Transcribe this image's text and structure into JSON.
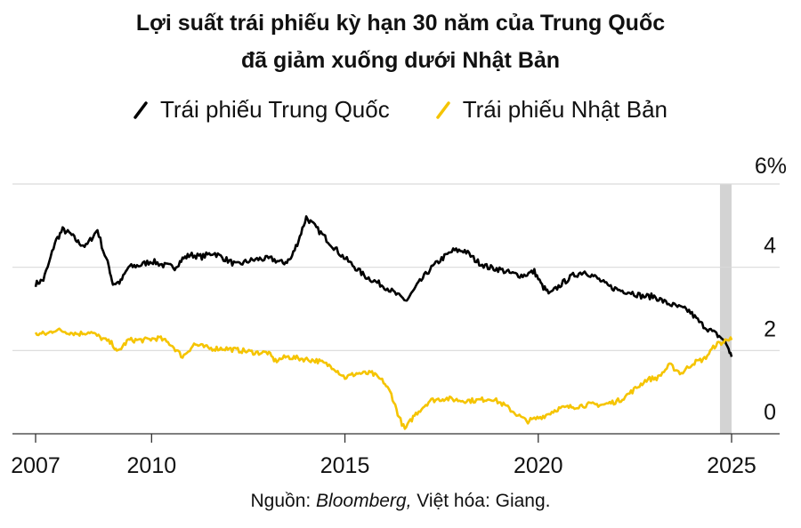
{
  "chart_data": {
    "type": "line",
    "title": "Lợi suất trái phiếu kỳ hạn 30 năm của Trung Quốc",
    "subtitle": "đã giảm xuống dưới Nhật Bản",
    "ylim": [
      0,
      6
    ],
    "xlim": [
      2007,
      2025.2
    ],
    "x_ticks": [
      2007,
      2010,
      2015,
      2020,
      2025
    ],
    "y_ticks": [
      0,
      2,
      4,
      6
    ],
    "y_tick_labels": [
      "0",
      "2",
      "4",
      "6%"
    ],
    "legend_position": "top",
    "grid": "horizontal",
    "highlight_band": [
      2024.7,
      2025.0
    ],
    "highlight_color": "#d3d3d3",
    "series": [
      {
        "name": "Trái phiếu Trung Quốc",
        "color": "#000000",
        "points": [
          [
            2007.0,
            3.6
          ],
          [
            2007.2,
            3.7
          ],
          [
            2007.35,
            4.1
          ],
          [
            2007.5,
            4.6
          ],
          [
            2007.7,
            4.9
          ],
          [
            2007.9,
            4.8
          ],
          [
            2008.1,
            4.6
          ],
          [
            2008.3,
            4.5
          ],
          [
            2008.6,
            4.9
          ],
          [
            2008.75,
            4.4
          ],
          [
            2008.9,
            4.0
          ],
          [
            2009.0,
            3.6
          ],
          [
            2009.2,
            3.65
          ],
          [
            2009.4,
            4.0
          ],
          [
            2009.7,
            4.05
          ],
          [
            2010.0,
            4.15
          ],
          [
            2010.3,
            4.05
          ],
          [
            2010.6,
            4.0
          ],
          [
            2010.8,
            4.2
          ],
          [
            2011.0,
            4.3
          ],
          [
            2011.3,
            4.25
          ],
          [
            2011.6,
            4.35
          ],
          [
            2011.9,
            4.2
          ],
          [
            2012.2,
            4.05
          ],
          [
            2012.5,
            4.15
          ],
          [
            2012.8,
            4.2
          ],
          [
            2013.1,
            4.2
          ],
          [
            2013.4,
            4.1
          ],
          [
            2013.6,
            4.2
          ],
          [
            2013.8,
            4.65
          ],
          [
            2014.0,
            5.2
          ],
          [
            2014.3,
            4.9
          ],
          [
            2014.6,
            4.6
          ],
          [
            2014.9,
            4.3
          ],
          [
            2015.2,
            4.05
          ],
          [
            2015.5,
            3.8
          ],
          [
            2015.8,
            3.65
          ],
          [
            2016.1,
            3.5
          ],
          [
            2016.4,
            3.3
          ],
          [
            2016.6,
            3.2
          ],
          [
            2016.9,
            3.6
          ],
          [
            2017.2,
            3.95
          ],
          [
            2017.5,
            4.2
          ],
          [
            2017.8,
            4.4
          ],
          [
            2018.1,
            4.4
          ],
          [
            2018.4,
            4.15
          ],
          [
            2018.7,
            4.0
          ],
          [
            2019.0,
            3.95
          ],
          [
            2019.3,
            3.85
          ],
          [
            2019.6,
            3.8
          ],
          [
            2019.9,
            3.9
          ],
          [
            2020.1,
            3.55
          ],
          [
            2020.3,
            3.35
          ],
          [
            2020.6,
            3.6
          ],
          [
            2020.9,
            3.8
          ],
          [
            2021.2,
            3.9
          ],
          [
            2021.5,
            3.75
          ],
          [
            2021.8,
            3.55
          ],
          [
            2022.1,
            3.45
          ],
          [
            2022.4,
            3.4
          ],
          [
            2022.7,
            3.3
          ],
          [
            2023.0,
            3.3
          ],
          [
            2023.3,
            3.15
          ],
          [
            2023.6,
            3.05
          ],
          [
            2023.9,
            2.95
          ],
          [
            2024.2,
            2.65
          ],
          [
            2024.5,
            2.45
          ],
          [
            2024.75,
            2.3
          ],
          [
            2024.9,
            2.1
          ],
          [
            2025.0,
            1.85
          ]
        ]
      },
      {
        "name": "Trái phiếu Nhật Bản",
        "color": "#f5c400",
        "points": [
          [
            2007.0,
            2.4
          ],
          [
            2007.3,
            2.4
          ],
          [
            2007.5,
            2.5
          ],
          [
            2007.8,
            2.45
          ],
          [
            2008.1,
            2.4
          ],
          [
            2008.4,
            2.45
          ],
          [
            2008.7,
            2.3
          ],
          [
            2009.0,
            2.15
          ],
          [
            2009.1,
            1.95
          ],
          [
            2009.4,
            2.25
          ],
          [
            2009.8,
            2.25
          ],
          [
            2010.2,
            2.3
          ],
          [
            2010.5,
            2.15
          ],
          [
            2010.8,
            1.85
          ],
          [
            2011.1,
            2.15
          ],
          [
            2011.5,
            2.05
          ],
          [
            2011.9,
            2.05
          ],
          [
            2012.3,
            2.0
          ],
          [
            2012.7,
            1.95
          ],
          [
            2013.0,
            1.95
          ],
          [
            2013.2,
            1.75
          ],
          [
            2013.5,
            1.85
          ],
          [
            2013.9,
            1.8
          ],
          [
            2014.3,
            1.75
          ],
          [
            2014.7,
            1.6
          ],
          [
            2015.0,
            1.35
          ],
          [
            2015.3,
            1.45
          ],
          [
            2015.7,
            1.45
          ],
          [
            2016.0,
            1.25
          ],
          [
            2016.2,
            0.95
          ],
          [
            2016.4,
            0.4
          ],
          [
            2016.55,
            0.1
          ],
          [
            2016.8,
            0.45
          ],
          [
            2017.2,
            0.8
          ],
          [
            2017.6,
            0.85
          ],
          [
            2018.0,
            0.8
          ],
          [
            2018.4,
            0.8
          ],
          [
            2018.8,
            0.85
          ],
          [
            2019.1,
            0.7
          ],
          [
            2019.4,
            0.5
          ],
          [
            2019.7,
            0.3
          ],
          [
            2019.9,
            0.35
          ],
          [
            2020.2,
            0.45
          ],
          [
            2020.5,
            0.6
          ],
          [
            2020.9,
            0.65
          ],
          [
            2021.3,
            0.7
          ],
          [
            2021.7,
            0.7
          ],
          [
            2022.1,
            0.8
          ],
          [
            2022.4,
            1.0
          ],
          [
            2022.8,
            1.3
          ],
          [
            2023.1,
            1.35
          ],
          [
            2023.4,
            1.65
          ],
          [
            2023.7,
            1.45
          ],
          [
            2024.0,
            1.7
          ],
          [
            2024.3,
            1.8
          ],
          [
            2024.6,
            2.15
          ],
          [
            2024.8,
            2.2
          ],
          [
            2024.9,
            2.3
          ],
          [
            2025.0,
            2.25
          ]
        ]
      }
    ]
  },
  "source": {
    "prefix": "Nguồn: ",
    "name": "Bloomberg,",
    "suffix": " Việt hóa: Giang."
  }
}
